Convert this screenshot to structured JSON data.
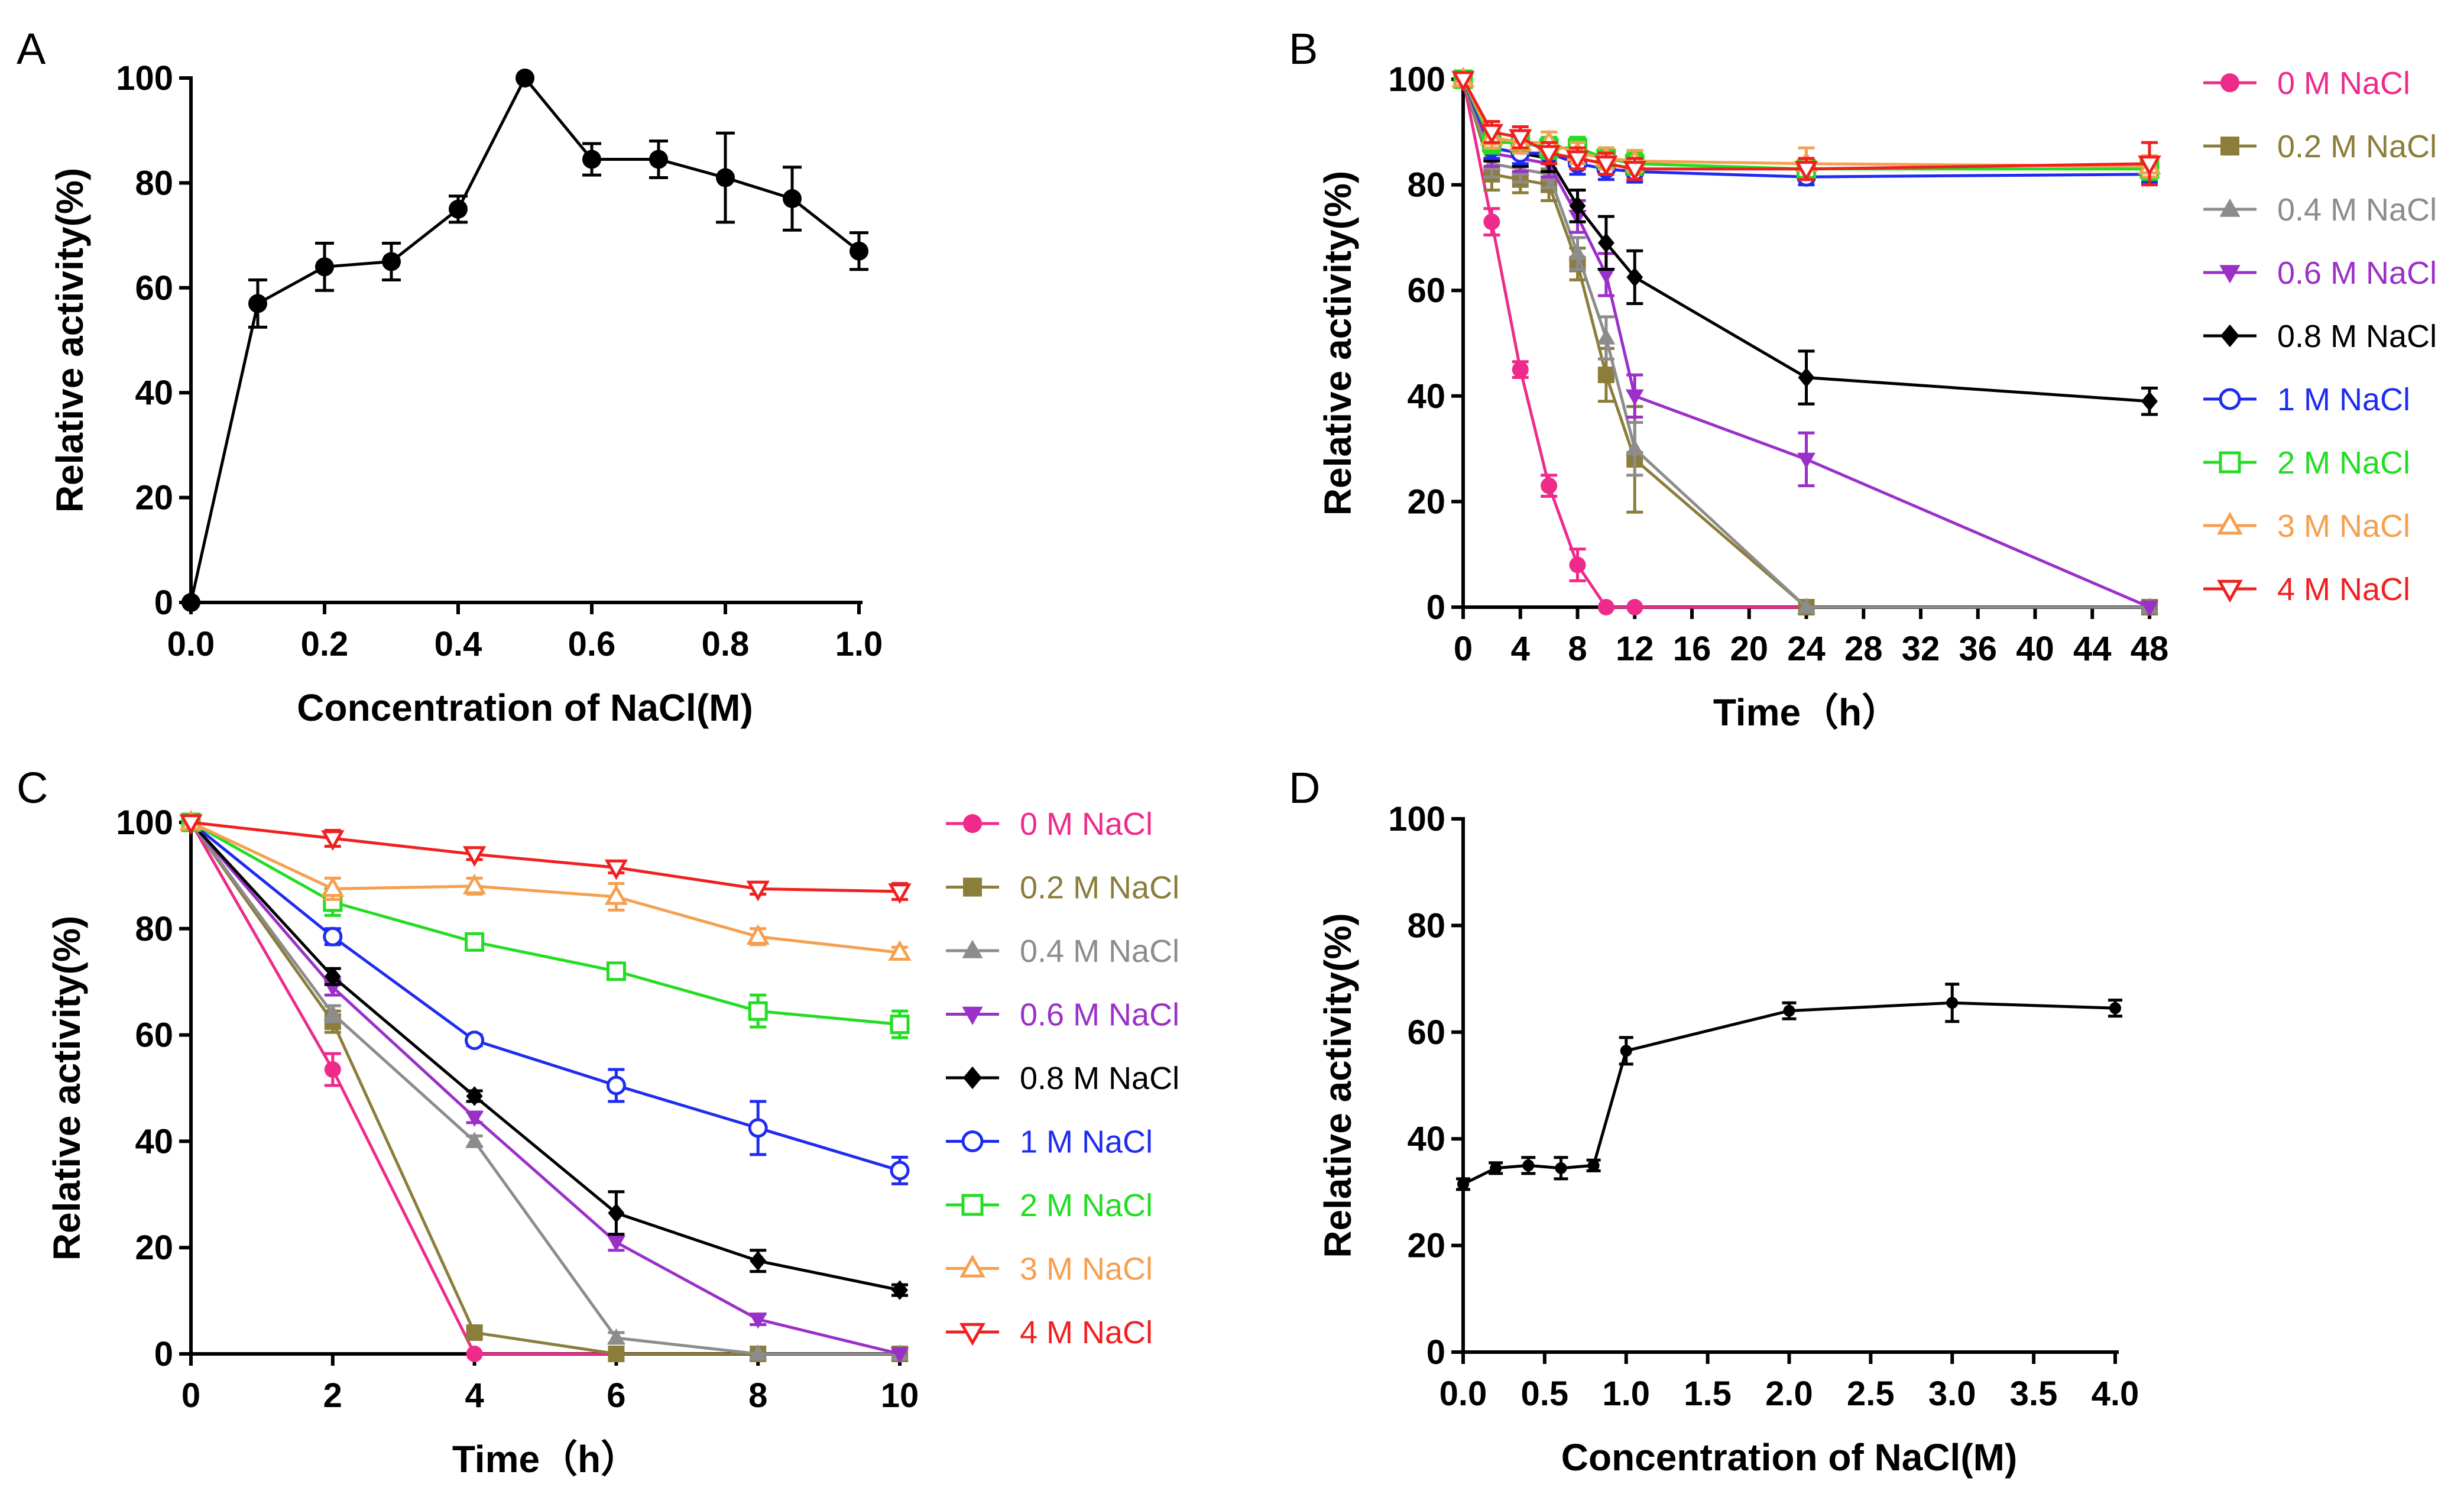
{
  "chart_data": [
    {
      "panel": "A",
      "type": "line",
      "xlabel": "Concentration of NaCl(M)",
      "ylabel": "Relative activity(%)",
      "xlim": [
        0,
        1.0
      ],
      "ylim": [
        0,
        100
      ],
      "xticks": [
        "0.0",
        "0.2",
        "0.4",
        "0.6",
        "0.8",
        "1.0"
      ],
      "yticks": [
        "0",
        "20",
        "40",
        "60",
        "80",
        "100"
      ],
      "series": [
        {
          "name": "NaCl",
          "color": "#000000",
          "marker": "circle-filled",
          "x": [
            0,
            0.1,
            0.2,
            0.3,
            0.4,
            0.5,
            0.6,
            0.7,
            0.8,
            0.9,
            1.0
          ],
          "values": [
            0,
            57,
            64,
            65,
            75,
            100,
            84.5,
            84.5,
            81,
            77,
            67
          ],
          "errors": [
            0,
            4.5,
            4.5,
            3.5,
            2.5,
            0,
            3,
            3.5,
            8.5,
            6,
            3.5
          ]
        }
      ]
    },
    {
      "panel": "B",
      "type": "line",
      "xlabel": "Time（h）",
      "ylabel": "Relative activity(%)",
      "xlim": [
        0,
        48
      ],
      "ylim": [
        0,
        100
      ],
      "xticks": [
        "0",
        "4",
        "8",
        "12",
        "16",
        "20",
        "24",
        "28",
        "32",
        "36",
        "40",
        "44",
        "48"
      ],
      "yticks": [
        "0",
        "20",
        "40",
        "60",
        "80",
        "100"
      ],
      "legend": "right",
      "series": [
        {
          "name": "0 M NaCl",
          "color": "#ee2b8a",
          "marker": "circle-filled",
          "x": [
            0,
            2,
            4,
            6,
            8,
            10,
            12,
            24,
            48
          ],
          "values": [
            100,
            73,
            45,
            23,
            8,
            0,
            0,
            0,
            0
          ],
          "errors": [
            0,
            2.5,
            1.5,
            2,
            3,
            0,
            0,
            0,
            0
          ]
        },
        {
          "name": "0.2 M NaCl",
          "color": "#8b7d3a",
          "marker": "square-filled",
          "x": [
            0,
            2,
            4,
            6,
            8,
            10,
            12,
            24,
            48
          ],
          "values": [
            100,
            82,
            81,
            80,
            65,
            44,
            28,
            0,
            0
          ],
          "errors": [
            0,
            3,
            2.5,
            3,
            3,
            5,
            10,
            0,
            0
          ]
        },
        {
          "name": "0.4 M NaCl",
          "color": "#8c8c8c",
          "marker": "triangle-up-filled",
          "x": [
            0,
            2,
            4,
            6,
            8,
            10,
            12,
            24,
            48
          ],
          "values": [
            100,
            84,
            83,
            82,
            67,
            51,
            30,
            0,
            0
          ],
          "errors": [
            0,
            2.5,
            2.5,
            2.5,
            3,
            4,
            5,
            0,
            0
          ]
        },
        {
          "name": "0.6 M NaCl",
          "color": "#9b30c8",
          "marker": "triangle-down-filled",
          "x": [
            0,
            2,
            4,
            6,
            8,
            10,
            12,
            24,
            48
          ],
          "values": [
            100,
            86,
            85,
            84,
            74,
            63,
            40,
            28,
            0
          ],
          "errors": [
            0,
            2.5,
            2.5,
            2.5,
            3,
            4,
            4,
            5,
            0
          ]
        },
        {
          "name": "0.8 M NaCl",
          "color": "#000000",
          "marker": "diamond-filled",
          "x": [
            0,
            2,
            4,
            6,
            8,
            10,
            12,
            24,
            48
          ],
          "values": [
            100,
            87,
            86,
            85,
            76,
            69,
            62.5,
            43.5,
            39
          ],
          "errors": [
            0,
            2.5,
            2.5,
            2.5,
            3,
            5,
            5,
            5,
            2.5
          ]
        },
        {
          "name": "1 M NaCl",
          "color": "#1f2cf0",
          "marker": "circle-open",
          "x": [
            0,
            2,
            4,
            6,
            8,
            10,
            12,
            24,
            48
          ],
          "values": [
            100,
            87,
            86,
            86,
            84,
            83,
            82.5,
            81.5,
            82
          ],
          "errors": [
            0,
            2,
            2,
            2,
            2,
            2,
            2,
            1.5,
            1.5
          ]
        },
        {
          "name": "2 M NaCl",
          "color": "#22dd22",
          "marker": "square-open",
          "x": [
            0,
            2,
            4,
            6,
            8,
            10,
            12,
            24,
            48
          ],
          "values": [
            100,
            88,
            88,
            87,
            87,
            85,
            84,
            83,
            83
          ],
          "errors": [
            0,
            2,
            2,
            2,
            2,
            2,
            2,
            2,
            2
          ]
        },
        {
          "name": "3 M NaCl",
          "color": "#f5a050",
          "marker": "triangle-up-open",
          "x": [
            0,
            2,
            4,
            6,
            8,
            10,
            12,
            24,
            48
          ],
          "values": [
            100,
            89,
            88,
            88,
            86,
            85,
            84.5,
            84,
            83.5
          ],
          "errors": [
            0,
            2,
            2,
            2,
            2,
            2,
            2,
            3,
            2
          ]
        },
        {
          "name": "4 M NaCl",
          "color": "#f02020",
          "marker": "triangle-down-open",
          "x": [
            0,
            2,
            4,
            6,
            8,
            10,
            12,
            24,
            48
          ],
          "values": [
            100,
            90,
            89,
            86,
            85,
            84,
            83,
            83,
            84
          ],
          "errors": [
            0,
            2,
            2,
            2,
            2,
            2,
            2,
            2,
            4
          ]
        }
      ]
    },
    {
      "panel": "C",
      "type": "line",
      "xlabel": "Time（h）",
      "ylabel": "Relative activity(%)",
      "xlim": [
        0,
        10
      ],
      "ylim": [
        0,
        100
      ],
      "xticks": [
        "0",
        "2",
        "4",
        "6",
        "8",
        "10"
      ],
      "yticks": [
        "0",
        "20",
        "40",
        "60",
        "80",
        "100"
      ],
      "legend": "right",
      "series": [
        {
          "name": "0 M NaCl",
          "color": "#ee2b8a",
          "marker": "circle-filled",
          "x": [
            0,
            2,
            4,
            6,
            8,
            10
          ],
          "values": [
            100,
            53.5,
            0,
            0,
            0,
            0
          ],
          "errors": [
            0,
            3,
            0,
            0,
            0,
            0
          ]
        },
        {
          "name": "0.2 M NaCl",
          "color": "#8b7d3a",
          "marker": "square-filled",
          "x": [
            0,
            2,
            4,
            6,
            8,
            10
          ],
          "values": [
            100,
            62.5,
            4,
            0,
            0,
            0
          ],
          "errors": [
            0,
            2,
            1,
            0,
            0,
            0
          ]
        },
        {
          "name": "0.4 M NaCl",
          "color": "#8c8c8c",
          "marker": "triangle-up-filled",
          "x": [
            0,
            2,
            4,
            6,
            8,
            10
          ],
          "values": [
            100,
            64,
            40,
            3,
            0,
            0
          ],
          "errors": [
            0,
            1.5,
            1,
            1,
            0,
            0
          ]
        },
        {
          "name": "0.6 M NaCl",
          "color": "#9b30c8",
          "marker": "triangle-down-filled",
          "x": [
            0,
            2,
            4,
            6,
            8,
            10
          ],
          "values": [
            100,
            69,
            44.5,
            21,
            6.5,
            0
          ],
          "errors": [
            0,
            1.5,
            1,
            1.5,
            1,
            0
          ]
        },
        {
          "name": "0.8 M NaCl",
          "color": "#000000",
          "marker": "diamond-filled",
          "x": [
            0,
            2,
            4,
            6,
            8,
            10
          ],
          "values": [
            100,
            71,
            48.5,
            26.5,
            17.5,
            12
          ],
          "errors": [
            0,
            1.5,
            1,
            4,
            2,
            1
          ]
        },
        {
          "name": "1 M NaCl",
          "color": "#1f2cf0",
          "marker": "circle-open",
          "x": [
            0,
            2,
            4,
            6,
            8,
            10
          ],
          "values": [
            100,
            78.5,
            59,
            50.5,
            42.5,
            34.5
          ],
          "errors": [
            0,
            1.5,
            1,
            3,
            5,
            2.5
          ]
        },
        {
          "name": "2 M NaCl",
          "color": "#22dd22",
          "marker": "square-open",
          "x": [
            0,
            2,
            4,
            6,
            8,
            10
          ],
          "values": [
            100,
            85,
            77.5,
            72,
            64.5,
            62
          ],
          "errors": [
            0,
            2.5,
            1,
            1,
            3,
            2.5
          ]
        },
        {
          "name": "3 M NaCl",
          "color": "#f5a050",
          "marker": "triangle-up-open",
          "x": [
            0,
            2,
            4,
            6,
            8,
            10
          ],
          "values": [
            100,
            87.5,
            88,
            86,
            78.5,
            75.5
          ],
          "errors": [
            0,
            2,
            1.5,
            2.5,
            1.5,
            1
          ]
        },
        {
          "name": "4 M NaCl",
          "color": "#f02020",
          "marker": "triangle-down-open",
          "x": [
            0,
            2,
            4,
            6,
            8,
            10
          ],
          "values": [
            100,
            97,
            94,
            91.5,
            87.5,
            87
          ],
          "errors": [
            0,
            1.5,
            1,
            1,
            1,
            1.5
          ]
        }
      ]
    },
    {
      "panel": "D",
      "type": "line",
      "xlabel": "Concentration of NaCl(M)",
      "ylabel": "Relative activity(%)",
      "xlim": [
        0,
        4.0
      ],
      "ylim": [
        0,
        100
      ],
      "xticks": [
        "0.0",
        "0.5",
        "1.0",
        "1.5",
        "2.0",
        "2.5",
        "3.0",
        "3.5",
        "4.0"
      ],
      "yticks": [
        "0",
        "20",
        "40",
        "60",
        "80",
        "100"
      ],
      "series": [
        {
          "name": "NaCl",
          "color": "#000000",
          "marker": "circle-filled-small",
          "x": [
            0,
            0.2,
            0.4,
            0.6,
            0.8,
            1.0,
            2.0,
            3.0,
            4.0
          ],
          "values": [
            31.5,
            34.5,
            35,
            34.5,
            35,
            56.5,
            64,
            65.5,
            64.5
          ],
          "errors": [
            1,
            1,
            1.5,
            2,
            1,
            2.5,
            1.5,
            3.5,
            1.5
          ]
        }
      ]
    }
  ]
}
